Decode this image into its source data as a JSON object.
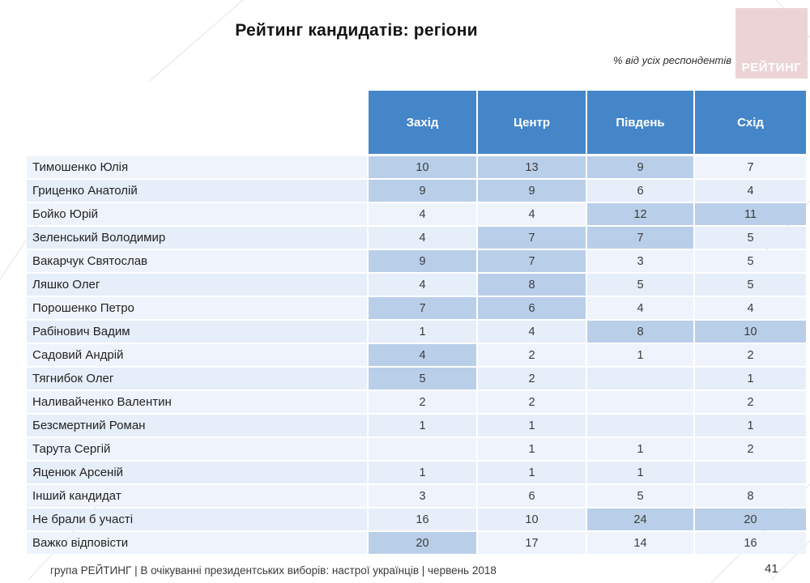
{
  "title": "Рейтинг кандидатів: регіони",
  "subtitle": "% від усіх респондентів",
  "logo": {
    "text": "РЕЙТИНГ"
  },
  "footer": {
    "source": "група РЕЙТИНГ  | В очікуванні президентських виборів: настрої українців |  червень 2018",
    "page": "41"
  },
  "colors": {
    "header-blue": "#4586c8",
    "cell-highlight": "#b9cfe9",
    "row-odd": "#eff4fc",
    "row-even": "#e6eef9",
    "logo-pink": "#ecd4d6",
    "text-dark": "#222222"
  },
  "chart_data": {
    "type": "table",
    "title": "Рейтинг кандидатів: регіони",
    "unit": "% від усіх респондентів",
    "columns": [
      "Захід",
      "Центр",
      "Південь",
      "Схід"
    ],
    "rows": [
      {
        "name": "Тимошенко Юлія",
        "values": [
          "10",
          "13",
          "9",
          "7"
        ],
        "highlight": [
          true,
          true,
          true,
          false
        ]
      },
      {
        "name": "Гриценко Анатолій",
        "values": [
          "9",
          "9",
          "6",
          "4"
        ],
        "highlight": [
          true,
          true,
          false,
          false
        ]
      },
      {
        "name": "Бойко Юрій",
        "values": [
          "4",
          "4",
          "12",
          "11"
        ],
        "highlight": [
          false,
          false,
          true,
          true
        ]
      },
      {
        "name": "Зеленський Володимир",
        "values": [
          "4",
          "7",
          "7",
          "5"
        ],
        "highlight": [
          false,
          true,
          true,
          false
        ]
      },
      {
        "name": "Вакарчук Святослав",
        "values": [
          "9",
          "7",
          "3",
          "5"
        ],
        "highlight": [
          true,
          true,
          false,
          false
        ]
      },
      {
        "name": "Ляшко Олег",
        "values": [
          "4",
          "8",
          "5",
          "5"
        ],
        "highlight": [
          false,
          true,
          false,
          false
        ]
      },
      {
        "name": "Порошенко Петро",
        "values": [
          "7",
          "6",
          "4",
          "4"
        ],
        "highlight": [
          true,
          true,
          false,
          false
        ]
      },
      {
        "name": "Рабінович Вадим",
        "values": [
          "1",
          "4",
          "8",
          "10"
        ],
        "highlight": [
          false,
          false,
          true,
          true
        ]
      },
      {
        "name": "Садовий Андрій",
        "values": [
          "4",
          "2",
          "1",
          "2"
        ],
        "highlight": [
          true,
          false,
          false,
          false
        ]
      },
      {
        "name": "Тягнибок Олег",
        "values": [
          "5",
          "2",
          "",
          "1"
        ],
        "highlight": [
          true,
          false,
          false,
          false
        ]
      },
      {
        "name": "Наливайченко Валентин",
        "values": [
          "2",
          "2",
          "",
          "2"
        ],
        "highlight": [
          false,
          false,
          false,
          false
        ]
      },
      {
        "name": "Безсмертний Роман",
        "values": [
          "1",
          "1",
          "",
          "1"
        ],
        "highlight": [
          false,
          false,
          false,
          false
        ]
      },
      {
        "name": "Тарута Сергій",
        "values": [
          "",
          "1",
          "1",
          "2"
        ],
        "highlight": [
          false,
          false,
          false,
          false
        ]
      },
      {
        "name": "Яценюк Арсеній",
        "values": [
          "1",
          "1",
          "1",
          ""
        ],
        "highlight": [
          false,
          false,
          false,
          false
        ]
      },
      {
        "name": "Інший кандидат",
        "values": [
          "3",
          "6",
          "5",
          "8"
        ],
        "highlight": [
          false,
          false,
          false,
          false
        ]
      },
      {
        "name": "Не брали б участі",
        "values": [
          "16",
          "10",
          "24",
          "20"
        ],
        "highlight": [
          false,
          false,
          true,
          true
        ]
      },
      {
        "name": "Важко відповісти",
        "values": [
          "20",
          "17",
          "14",
          "16"
        ],
        "highlight": [
          true,
          false,
          false,
          false
        ]
      }
    ]
  }
}
